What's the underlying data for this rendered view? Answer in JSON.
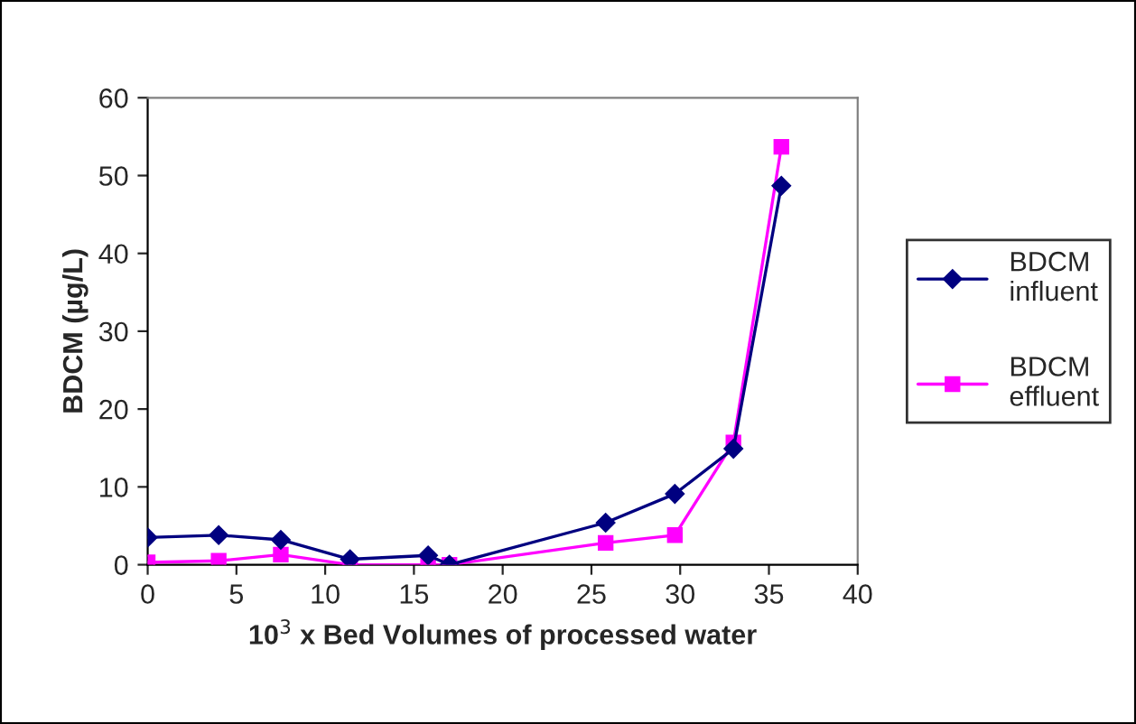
{
  "chart_data": {
    "type": "line",
    "xlabel": "10$^{3}$ x Bed Volumes of processed water",
    "ylabel": "BDCM (µg/L)",
    "xlim": [
      0,
      40
    ],
    "xticks": [
      0,
      5,
      10,
      15,
      20,
      25,
      30,
      35,
      40
    ],
    "ylim": [
      0,
      60
    ],
    "yticks": [
      0,
      10,
      20,
      30,
      40,
      50,
      60
    ],
    "grid": false,
    "legend": "right",
    "line_style": "solid",
    "series": [
      {
        "name": "BDCM\ninfluent",
        "color": "#000080",
        "marker": "diamond",
        "x": [
          0,
          4,
          7.5,
          11.4,
          15.8,
          17,
          25.8,
          29.7,
          33,
          35.7
        ],
        "values": [
          3.5,
          3.8,
          3.2,
          0.7,
          1.2,
          0,
          5.4,
          9.1,
          14.9,
          48.7
        ]
      },
      {
        "name": "BDCM\neffluent",
        "color": "#ff00ff",
        "marker": "square",
        "x": [
          0,
          4,
          7.5,
          11.4,
          15.8,
          17,
          25.8,
          29.7,
          33,
          35.7
        ],
        "values": [
          0.3,
          0.5,
          1.3,
          0,
          0,
          0,
          2.8,
          3.8,
          15.7,
          53.7
        ]
      }
    ]
  }
}
